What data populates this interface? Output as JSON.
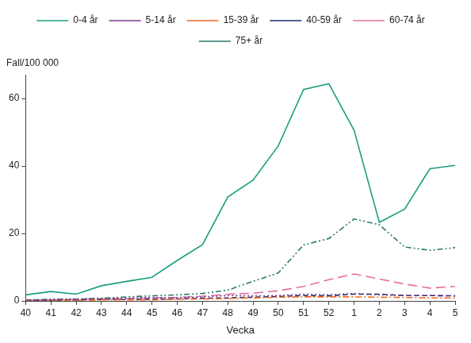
{
  "chart_data": {
    "type": "line",
    "x_label": "Vecka",
    "y_label": "Fall/100 000",
    "categories": [
      "40",
      "41",
      "42",
      "43",
      "44",
      "45",
      "46",
      "47",
      "48",
      "49",
      "50",
      "51",
      "52",
      "1",
      "2",
      "3",
      "4",
      "5"
    ],
    "series": [
      {
        "name": "0-4 år",
        "color": "#1a9e82",
        "line_style": "solid",
        "values": [
          1.8,
          2.8,
          2.0,
          4.5,
          5.8,
          7.0,
          12.0,
          16.7,
          30.8,
          35.8,
          46.0,
          62.7,
          64.4,
          50.6,
          23.3,
          27.2,
          39.2,
          40.2
        ]
      },
      {
        "name": "5-14 år",
        "color": "#7a3a8c",
        "line_style": "dotted",
        "values": [
          0.2,
          0.3,
          0.5,
          0.7,
          0.8,
          1.0,
          1.0,
          1.2,
          1.6,
          1.5,
          1.6,
          2.0,
          1.8,
          2.2,
          1.8,
          1.6,
          1.6,
          1.5
        ]
      },
      {
        "name": "15-39 år",
        "color": "#f26b21",
        "line_style": "dashdot",
        "values": [
          0.1,
          0.1,
          0.2,
          0.3,
          0.3,
          0.3,
          0.5,
          0.6,
          0.7,
          0.9,
          1.1,
          1.2,
          1.2,
          1.2,
          1.1,
          1.0,
          0.9,
          0.9
        ]
      },
      {
        "name": "40-59 år",
        "color": "#1f2a6e",
        "line_style": "dashed",
        "values": [
          0.2,
          0.2,
          0.3,
          0.4,
          0.4,
          0.5,
          0.6,
          0.8,
          0.9,
          1.1,
          1.3,
          1.6,
          1.5,
          2.0,
          2.0,
          1.6,
          1.6,
          1.5
        ]
      },
      {
        "name": "60-74 år",
        "color": "#e26fa3",
        "line_style": "longdash",
        "values": [
          0.3,
          0.3,
          0.5,
          0.6,
          0.7,
          0.9,
          1.0,
          1.4,
          2.0,
          2.3,
          3.0,
          4.3,
          6.3,
          8.0,
          6.5,
          5.0,
          3.8,
          4.3
        ]
      },
      {
        "name": "75+ år",
        "color": "#2a7a6c",
        "line_style": "dashdotdot",
        "values": [
          0.3,
          0.5,
          0.6,
          0.8,
          1.2,
          1.5,
          1.8,
          2.2,
          3.2,
          5.8,
          8.3,
          16.6,
          18.5,
          24.3,
          22.6,
          16.0,
          15.0,
          15.8
        ]
      }
    ],
    "ylim": [
      0,
      67
    ],
    "yticks": [
      0,
      20,
      40,
      60
    ],
    "grid": false,
    "legend": "top",
    "marker": "none"
  }
}
